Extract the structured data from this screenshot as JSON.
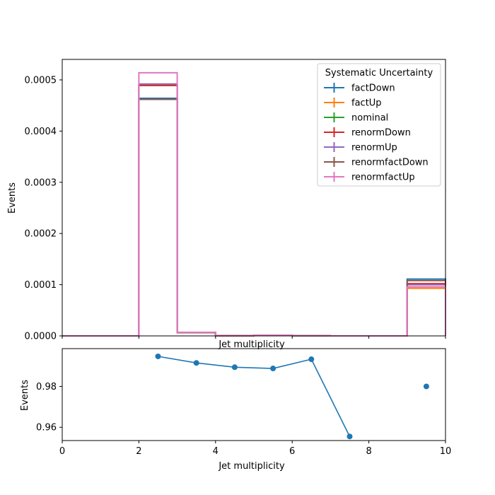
{
  "chart_data": [
    {
      "type": "step",
      "xlabel": "Jet multiplicity",
      "ylabel": "Events",
      "xlim": [
        0,
        10
      ],
      "ylim": [
        0,
        0.00054
      ],
      "x_ticks": [
        0,
        2,
        4,
        6,
        8,
        10
      ],
      "y_ticks": [
        0,
        0.0001,
        0.0002,
        0.0003,
        0.0004,
        0.0005
      ],
      "y_tick_labels": [
        "0.0000",
        "0.0001",
        "0.0002",
        "0.0003",
        "0.0004",
        "0.0005"
      ],
      "bin_edges": [
        0,
        1,
        2,
        3,
        4,
        5,
        6,
        7,
        8,
        9,
        10
      ],
      "legend_title": "Systematic Uncertainty",
      "legend_position": "top-right",
      "series": [
        {
          "name": "factDown",
          "color": "#1f77b4",
          "values": [
            0,
            0,
            0.000464,
            6.5e-06,
            3e-07,
            1.2e-06,
            2e-07,
            0,
            0,
            0.000111
          ]
        },
        {
          "name": "factUp",
          "color": "#ff7f0e",
          "values": [
            0,
            0,
            0.000491,
            6.8e-06,
            3e-07,
            1.2e-06,
            2e-07,
            0,
            0,
            9.3e-05
          ]
        },
        {
          "name": "nominal",
          "color": "#2ca02c",
          "values": [
            0,
            0,
            0.00049,
            6.7e-06,
            3e-07,
            1.2e-06,
            2e-07,
            0,
            0,
            0.000101
          ]
        },
        {
          "name": "renormDown",
          "color": "#d62728",
          "values": [
            0,
            0,
            0.000489,
            6.7e-06,
            3e-07,
            1.2e-06,
            2e-07,
            0,
            0,
            0.000102
          ]
        },
        {
          "name": "renormUp",
          "color": "#9467bd",
          "values": [
            0,
            0,
            0.000492,
            6.8e-06,
            3e-07,
            1.2e-06,
            2e-07,
            0,
            0,
            0.0001
          ]
        },
        {
          "name": "renormfactDown",
          "color": "#8c564b",
          "values": [
            0,
            0,
            0.000462,
            6.4e-06,
            3e-07,
            1.2e-06,
            2e-07,
            0,
            0,
            0.000108
          ]
        },
        {
          "name": "renormfactUp",
          "color": "#e377c2",
          "values": [
            0,
            0,
            0.000514,
            7e-06,
            3e-07,
            1.2e-06,
            2e-07,
            0,
            0,
            9.6e-05
          ]
        }
      ]
    },
    {
      "type": "line",
      "xlabel": "Jet multiplicity",
      "ylabel": "Events",
      "xlim": [
        0,
        10
      ],
      "ylim": [
        0.9535,
        0.9985
      ],
      "x_ticks": [
        0,
        2,
        4,
        6,
        8,
        10
      ],
      "y_ticks": [
        0.96,
        0.98
      ],
      "y_tick_labels": [
        "0.96",
        "0.98"
      ],
      "series": [
        {
          "color": "#1f77b4",
          "x": [
            2.5,
            3.5,
            4.5,
            5.5,
            6.5,
            7.5
          ],
          "y": [
            0.9947,
            0.9915,
            0.9894,
            0.9888,
            0.9933,
            0.9555
          ],
          "connected": true
        },
        {
          "color": "#1f77b4",
          "x": [
            9.5
          ],
          "y": [
            0.98
          ],
          "connected": false
        }
      ]
    }
  ]
}
